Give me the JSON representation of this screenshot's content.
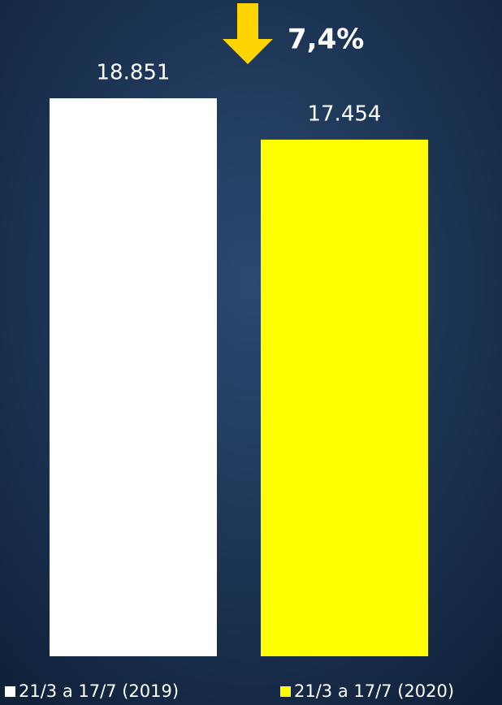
{
  "chart_data": {
    "type": "bar",
    "annotation": "7,4%",
    "categories": [
      null
    ],
    "series": [
      {
        "name": "21/3 a 17/7 (2019)",
        "color": "#ffffff",
        "values": [
          18851
        ],
        "value_labels": [
          "18.851"
        ]
      },
      {
        "name": "21/3 a 17/7 (2020)",
        "color": "#ffff00",
        "values": [
          17454
        ],
        "value_labels": [
          "17.454"
        ]
      }
    ]
  }
}
